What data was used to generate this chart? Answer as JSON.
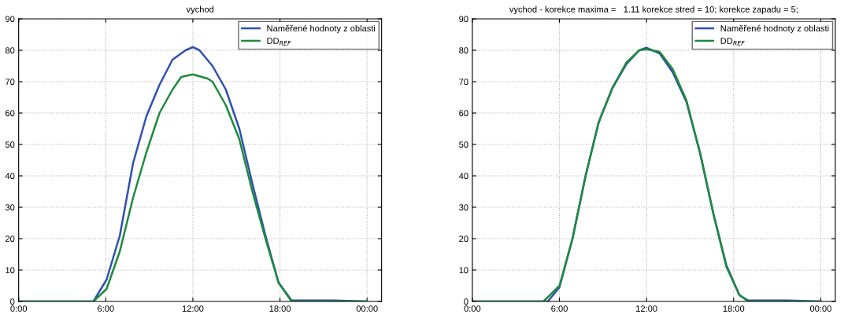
{
  "chart_data": [
    {
      "type": "line",
      "title": "vychod",
      "xlim": [
        0,
        25
      ],
      "ylim": [
        0,
        90
      ],
      "xticks": [
        {
          "value": 0,
          "label": "0:00"
        },
        {
          "value": 6,
          "label": "6:00"
        },
        {
          "value": 12,
          "label": "12:00"
        },
        {
          "value": 18,
          "label": "18:00"
        },
        {
          "value": 24,
          "label": "00:00"
        }
      ],
      "yticks": [
        0,
        10,
        20,
        30,
        40,
        50,
        60,
        70,
        80,
        90
      ],
      "grid": true,
      "legend": "top right",
      "line_style": "solid",
      "marker": "none",
      "series": [
        {
          "name": "Naměřené hodnoty z oblasti",
          "color": "#3050b0",
          "x": [
            0,
            5.15,
            6.06,
            6.97,
            7.88,
            8.8,
            9.7,
            10.6,
            11.5,
            12,
            12.45,
            13.35,
            14.27,
            15.2,
            16.1,
            17.0,
            17.9,
            18.8,
            21.7,
            24
          ],
          "values": [
            0,
            0,
            7,
            21,
            44,
            59,
            69,
            77,
            80,
            81,
            80,
            75,
            67.5,
            55,
            37.5,
            21,
            6,
            0.3,
            0.3,
            0
          ]
        },
        {
          "name": "DD$_{REF}$",
          "color": "#1f8a3c",
          "x": [
            0,
            5.15,
            6.06,
            6.97,
            7.88,
            8.8,
            9.7,
            10.6,
            11.2,
            12,
            13,
            13.35,
            14.27,
            15.2,
            16.1,
            17.0,
            17.9,
            18.8,
            24
          ],
          "values": [
            0,
            0,
            4,
            16,
            33,
            47.5,
            60,
            67.5,
            71.5,
            72.3,
            71,
            70,
            62.5,
            51.7,
            35,
            20,
            6,
            0,
            0
          ]
        }
      ]
    },
    {
      "type": "line",
      "title": "vychod - korekce maxima =   1.11 korekce stred = 10; korekce zapadu = 5;",
      "xlim": [
        0,
        25
      ],
      "ylim": [
        0,
        90
      ],
      "xticks": [
        {
          "value": 0,
          "label": "0:00"
        },
        {
          "value": 6,
          "label": "6:00"
        },
        {
          "value": 12,
          "label": "12:00"
        },
        {
          "value": 18,
          "label": "18:00"
        },
        {
          "value": 24,
          "label": "00:00"
        }
      ],
      "yticks": [
        0,
        10,
        20,
        30,
        40,
        50,
        60,
        70,
        80,
        90
      ],
      "grid": true,
      "legend": "top right",
      "line_style": "solid",
      "marker": "none",
      "series": [
        {
          "name": "Naměřené hodnoty z oblasti",
          "color": "#3050b0",
          "x": [
            0,
            5.2,
            6,
            6.9,
            7.8,
            8.7,
            9.65,
            10.6,
            11.5,
            12,
            12.9,
            13.8,
            14.75,
            15.7,
            16.6,
            17.5,
            18.4,
            19,
            21.7,
            24
          ],
          "values": [
            0,
            0,
            4.5,
            20,
            40,
            57,
            68,
            75.5,
            80,
            80.8,
            79,
            73,
            63.5,
            47,
            28,
            11.5,
            2,
            0.3,
            0.3,
            0
          ]
        },
        {
          "name": "DD$_{REF}$",
          "color": "#1f8a3c",
          "x": [
            0,
            4.9,
            6,
            6.9,
            7.8,
            8.7,
            9.65,
            10.6,
            11.5,
            12,
            12.9,
            13.8,
            14.75,
            15.7,
            16.6,
            17.5,
            18.4,
            19,
            24
          ],
          "values": [
            0,
            0,
            5,
            20,
            40,
            57,
            68,
            76,
            80,
            80.3,
            79.5,
            74,
            64,
            47,
            28,
            11,
            2,
            0,
            0
          ]
        }
      ]
    }
  ]
}
